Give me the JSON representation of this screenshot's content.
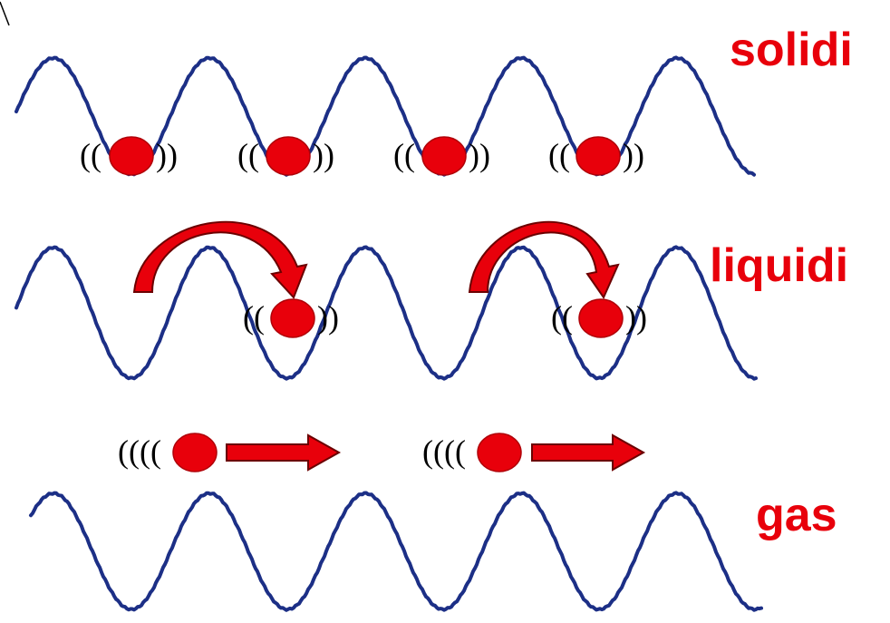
{
  "labels": {
    "solid": "solidi",
    "liquid": "liquidi",
    "gas": "gas"
  },
  "vibration": {
    "open_solid": "((",
    "close_solid": "))",
    "open_gas": "(((("
  },
  "rows": {
    "solid": {
      "particle_count": 4
    },
    "liquid": {
      "particle_count": 2,
      "hop_arrow_count": 2
    },
    "gas": {
      "particle_count": 2,
      "motion_arrow_count": 2
    }
  },
  "colors": {
    "wave": "#1c2f86",
    "particle": "#e8000b",
    "particle_stroke": "#b00008",
    "label": "#e8000b",
    "arrow": "#e8000b",
    "arrow_stroke": "#6b0000"
  }
}
